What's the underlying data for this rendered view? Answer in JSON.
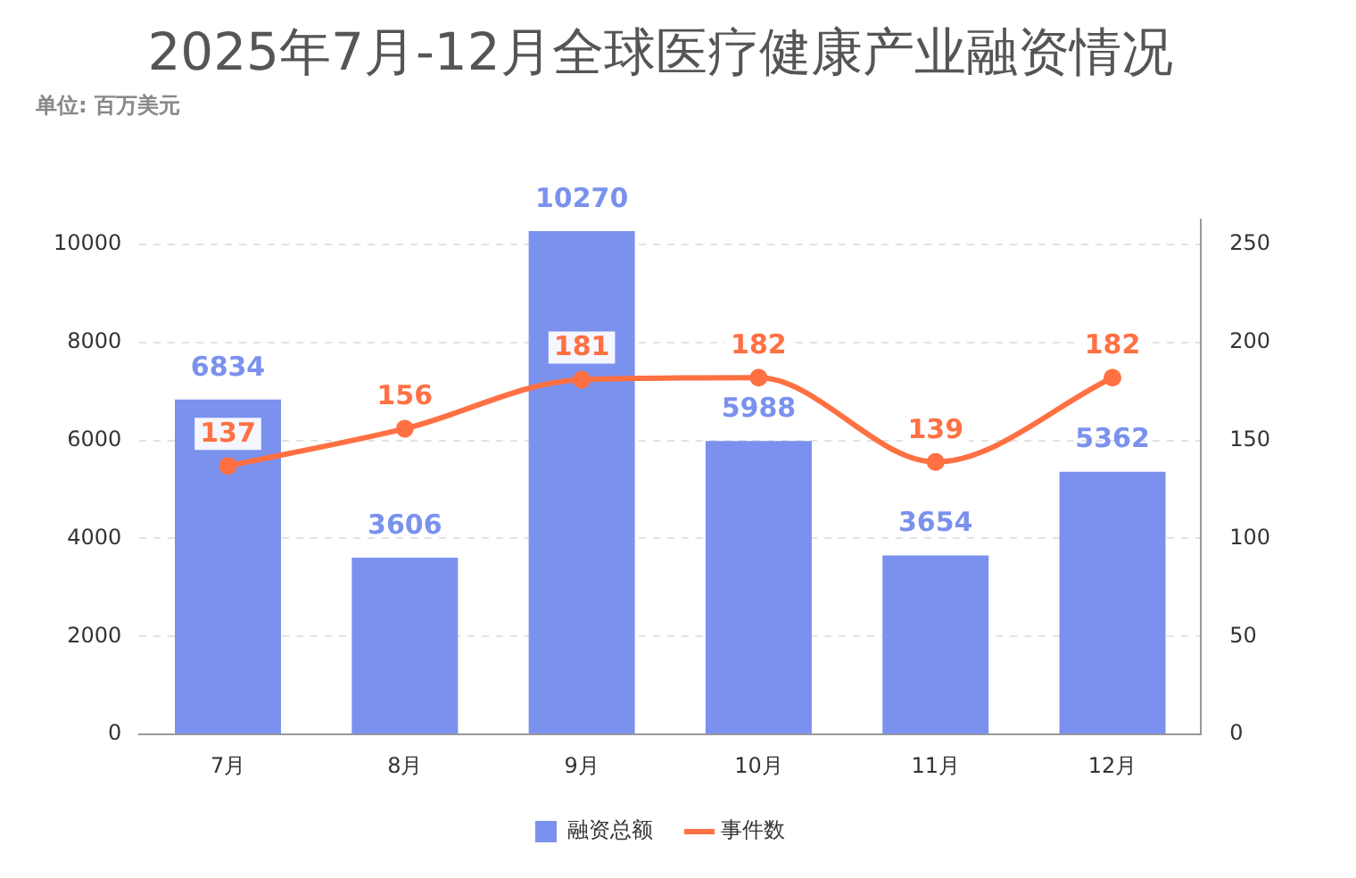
{
  "chart_data": {
    "type": "bar",
    "title": "2025年7月-12月全球医疗健康产业融资情况",
    "subtitle": "单位: 百万美元",
    "categories": [
      "7月",
      "8月",
      "9月",
      "10月",
      "11月",
      "12月"
    ],
    "series": [
      {
        "name": "融资总额",
        "color": "#7b91ee",
        "values": [
          6834,
          3606,
          10270,
          5988,
          3654,
          5362
        ]
      },
      {
        "name": "事件数",
        "type": "line",
        "axis": "y2",
        "color": "#ff7043",
        "marker": "circle",
        "values": [
          137,
          156,
          181,
          182,
          139,
          182
        ]
      }
    ],
    "ylim": [
      0,
      10500
    ],
    "yticks": [
      0,
      2000,
      4000,
      6000,
      8000,
      10000
    ],
    "y2lim": [
      0,
      262.5
    ],
    "y2ticks": [
      0,
      50,
      100,
      150,
      200,
      250
    ],
    "grid": "y",
    "legend": "bottom",
    "data_labels": true
  }
}
